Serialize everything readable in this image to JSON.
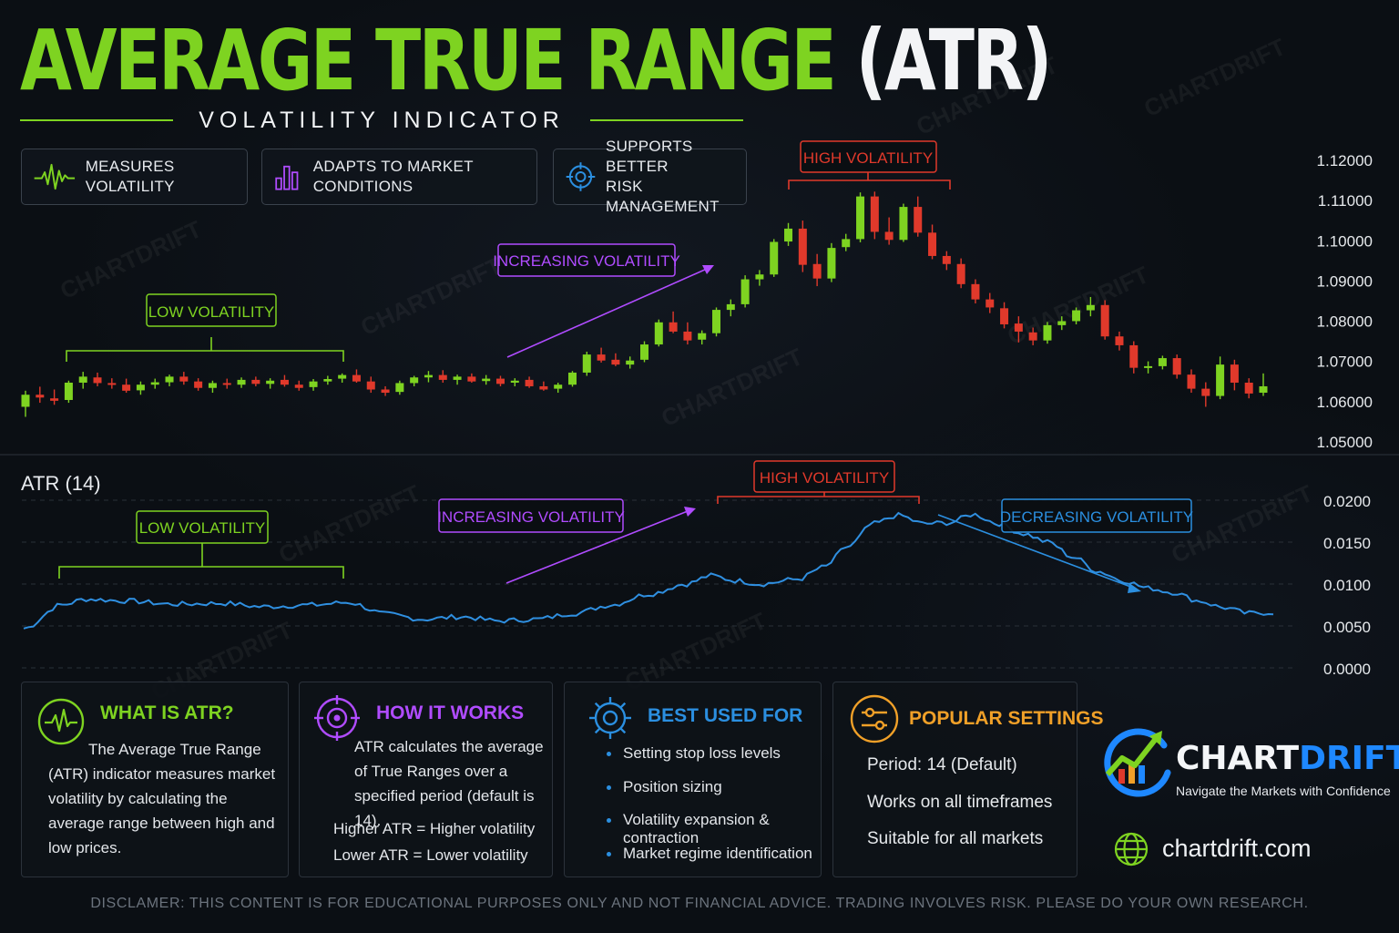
{
  "header": {
    "title_green": "AVERAGE TRUE RANGE",
    "title_white": "(ATR)",
    "subtitle": "VOLATILITY INDICATOR"
  },
  "features": [
    {
      "label": "MEASURES VOLATILITY",
      "icon": "pulse-icon",
      "color": "#7ed321"
    },
    {
      "label": "ADAPTS TO MARKET CONDITIONS",
      "icon": "bars-icon",
      "color": "#b04cff"
    },
    {
      "label": "SUPPORTS BETTER\nRISK MANAGEMENT",
      "icon": "target-icon",
      "color": "#2b8fe0"
    }
  ],
  "colors": {
    "green": "#7ed321",
    "red": "#e0392b",
    "purple": "#b04cff",
    "blue": "#2b8fe0",
    "orange": "#f0a028",
    "atr_line": "#2f8fe0"
  },
  "chart_data": [
    {
      "type": "candlestick",
      "title": "",
      "xlabel": "",
      "ylabel": "",
      "ylim": [
        1.05,
        1.12
      ],
      "yticks": [
        "1.12000",
        "1.11000",
        "1.10000",
        "1.09000",
        "1.08000",
        "1.07000",
        "1.06000",
        "1.05000"
      ],
      "ytick_values": [
        1.12,
        1.11,
        1.1,
        1.09,
        1.08,
        1.07,
        1.06,
        1.05
      ],
      "series": [
        {
          "ohlc": [
            [
              1.0585,
              1.0625,
              1.056,
              1.0615
            ],
            [
              1.0615,
              1.0635,
              1.0595,
              1.0608
            ],
            [
              1.0606,
              1.0628,
              1.059,
              1.06
            ],
            [
              1.0602,
              1.065,
              1.0595,
              1.0645
            ],
            [
              1.0645,
              1.0672,
              1.063,
              1.066
            ],
            [
              1.0658,
              1.067,
              1.0636,
              1.0644
            ],
            [
              1.0644,
              1.0656,
              1.063,
              1.064
            ],
            [
              1.064,
              1.0655,
              1.062,
              1.0625
            ],
            [
              1.0626,
              1.0648,
              1.0615,
              1.064
            ],
            [
              1.064,
              1.0655,
              1.063,
              1.0646
            ],
            [
              1.0646,
              1.0665,
              1.0636,
              1.066
            ],
            [
              1.066,
              1.0672,
              1.064,
              1.0648
            ],
            [
              1.0648,
              1.0656,
              1.0625,
              1.0632
            ],
            [
              1.0632,
              1.065,
              1.062,
              1.0644
            ],
            [
              1.0644,
              1.0655,
              1.063,
              1.064
            ],
            [
              1.064,
              1.0658,
              1.0632,
              1.0652
            ],
            [
              1.0652,
              1.066,
              1.0636,
              1.0642
            ],
            [
              1.0642,
              1.0656,
              1.063,
              1.065
            ],
            [
              1.0652,
              1.0664,
              1.0635,
              1.064
            ],
            [
              1.064,
              1.065,
              1.0625,
              1.0632
            ],
            [
              1.0634,
              1.0654,
              1.0625,
              1.0648
            ],
            [
              1.0648,
              1.0662,
              1.064,
              1.0654
            ],
            [
              1.0655,
              1.0668,
              1.0645,
              1.0664
            ],
            [
              1.0664,
              1.0678,
              1.0645,
              1.0648
            ],
            [
              1.0648,
              1.066,
              1.062,
              1.0628
            ],
            [
              1.0628,
              1.0636,
              1.0612,
              1.062
            ],
            [
              1.0622,
              1.065,
              1.0615,
              1.0644
            ],
            [
              1.0644,
              1.0662,
              1.0636,
              1.0658
            ],
            [
              1.0658,
              1.0674,
              1.0646,
              1.0664
            ],
            [
              1.0664,
              1.0676,
              1.0645,
              1.0652
            ],
            [
              1.0652,
              1.0665,
              1.064,
              1.066
            ],
            [
              1.066,
              1.0668,
              1.0645,
              1.0648
            ],
            [
              1.0649,
              1.0664,
              1.064,
              1.0655
            ],
            [
              1.0655,
              1.0662,
              1.0636,
              1.0642
            ],
            [
              1.0645,
              1.0656,
              1.0636,
              1.065
            ],
            [
              1.0652,
              1.066,
              1.0632,
              1.0636
            ],
            [
              1.0636,
              1.0648,
              1.0625,
              1.0628
            ],
            [
              1.063,
              1.0645,
              1.062,
              1.064
            ],
            [
              1.064,
              1.0674,
              1.0635,
              1.067
            ],
            [
              1.067,
              1.0722,
              1.0662,
              1.0715
            ],
            [
              1.0715,
              1.0732,
              1.0695,
              1.07
            ],
            [
              1.0702,
              1.0718,
              1.0686,
              1.069
            ],
            [
              1.069,
              1.071,
              1.068,
              1.07
            ],
            [
              1.0702,
              1.0748,
              1.0696,
              1.074
            ],
            [
              1.074,
              1.0802,
              1.0735,
              1.0795
            ],
            [
              1.0795,
              1.0822,
              1.0768,
              1.0772
            ],
            [
              1.0772,
              1.0795,
              1.074,
              1.075
            ],
            [
              1.0752,
              1.0775,
              1.074,
              1.0768
            ],
            [
              1.0768,
              1.0832,
              1.076,
              1.0826
            ],
            [
              1.0826,
              1.0852,
              1.081,
              1.084
            ],
            [
              1.084,
              1.0912,
              1.0832,
              1.0902
            ],
            [
              1.0902,
              1.0925,
              1.0886,
              1.0914
            ],
            [
              1.0914,
              1.1002,
              1.0908,
              1.0995
            ],
            [
              1.0996,
              1.1042,
              1.0985,
              1.1028
            ],
            [
              1.1028,
              1.1048,
              1.092,
              1.0938
            ],
            [
              1.094,
              1.0965,
              1.0885,
              1.0904
            ],
            [
              1.0904,
              1.0992,
              1.0895,
              1.098
            ],
            [
              1.0982,
              1.1015,
              1.0972,
              1.1002
            ],
            [
              1.1002,
              1.1118,
              1.0994,
              1.1108
            ],
            [
              1.1108,
              1.112,
              1.1002,
              1.102
            ],
            [
              1.102,
              1.1056,
              1.0988,
              1.1
            ],
            [
              1.1,
              1.109,
              1.0995,
              1.1082
            ],
            [
              1.1082,
              1.1108,
              1.1008,
              1.1018
            ],
            [
              1.1018,
              1.1038,
              1.0952,
              1.096
            ],
            [
              1.096,
              1.0972,
              1.0925,
              1.094
            ],
            [
              1.094,
              1.0954,
              1.088,
              1.089
            ],
            [
              1.089,
              1.0902,
              1.0842,
              1.0852
            ],
            [
              1.0852,
              1.0868,
              1.0818,
              1.0832
            ],
            [
              1.083,
              1.0845,
              1.078,
              1.079
            ],
            [
              1.0792,
              1.081,
              1.0745,
              1.0772
            ],
            [
              1.077,
              1.0782,
              1.0738,
              1.075
            ],
            [
              1.075,
              1.0796,
              1.0742,
              1.0788
            ],
            [
              1.0788,
              1.081,
              1.0776,
              1.0798
            ],
            [
              1.0798,
              1.0832,
              1.079,
              1.0825
            ],
            [
              1.0825,
              1.0858,
              1.081,
              1.0838
            ],
            [
              1.0838,
              1.085,
              1.0752,
              1.076
            ],
            [
              1.076,
              1.0772,
              1.0725,
              1.0738
            ],
            [
              1.0738,
              1.0748,
              1.0668,
              1.0682
            ],
            [
              1.0684,
              1.0698,
              1.0668,
              1.0686
            ],
            [
              1.0686,
              1.0712,
              1.0678,
              1.0706
            ],
            [
              1.0706,
              1.0715,
              1.0655,
              1.0665
            ],
            [
              1.0665,
              1.0678,
              1.062,
              1.063
            ],
            [
              1.063,
              1.0646,
              1.0585,
              1.0612
            ],
            [
              1.0612,
              1.071,
              1.0604,
              1.069
            ],
            [
              1.069,
              1.0702,
              1.0626,
              1.0645
            ],
            [
              1.0645,
              1.0656,
              1.0606,
              1.0618
            ],
            [
              1.062,
              1.0668,
              1.0612,
              1.0636
            ]
          ]
        }
      ],
      "annotations": [
        {
          "label": "LOW VOLATILITY",
          "color": "#7ed321"
        },
        {
          "label": "INCREASING VOLATILITY",
          "color": "#b04cff"
        },
        {
          "label": "HIGH VOLATILITY",
          "color": "#e0392b"
        }
      ]
    },
    {
      "type": "line",
      "title": "ATR (14)",
      "xlabel": "",
      "ylabel": "",
      "ylim": [
        0.0,
        0.02
      ],
      "yticks": [
        "0.0200",
        "0.0150",
        "0.0100",
        "0.0050",
        "0.0000"
      ],
      "ytick_values": [
        0.02,
        0.015,
        0.01,
        0.005,
        0.0
      ],
      "grid": true,
      "series": [
        {
          "name": "",
          "anchors": [
            [
              0.0,
              0.0047
            ],
            [
              0.03,
              0.0075
            ],
            [
              0.05,
              0.0082
            ],
            [
              0.08,
              0.008
            ],
            [
              0.12,
              0.0076
            ],
            [
              0.16,
              0.0077
            ],
            [
              0.19,
              0.0073
            ],
            [
              0.23,
              0.0075
            ],
            [
              0.26,
              0.0078
            ],
            [
              0.29,
              0.0064
            ],
            [
              0.32,
              0.0058
            ],
            [
              0.35,
              0.0061
            ],
            [
              0.38,
              0.0056
            ],
            [
              0.41,
              0.0058
            ],
            [
              0.44,
              0.0065
            ],
            [
              0.47,
              0.0075
            ],
            [
              0.5,
              0.0088
            ],
            [
              0.53,
              0.01
            ],
            [
              0.55,
              0.011
            ],
            [
              0.57,
              0.0104
            ],
            [
              0.59,
              0.01
            ],
            [
              0.62,
              0.0106
            ],
            [
              0.64,
              0.012
            ],
            [
              0.66,
              0.0145
            ],
            [
              0.68,
              0.0172
            ],
            [
              0.7,
              0.0182
            ],
            [
              0.72,
              0.0172
            ],
            [
              0.74,
              0.0173
            ],
            [
              0.76,
              0.0183
            ],
            [
              0.78,
              0.0172
            ],
            [
              0.8,
              0.016
            ],
            [
              0.82,
              0.015
            ],
            [
              0.84,
              0.0132
            ],
            [
              0.86,
              0.0115
            ],
            [
              0.88,
              0.0104
            ],
            [
              0.9,
              0.0095
            ],
            [
              0.92,
              0.009
            ],
            [
              0.94,
              0.008
            ],
            [
              0.96,
              0.0072
            ],
            [
              0.98,
              0.0065
            ],
            [
              1.0,
              0.0066
            ]
          ]
        }
      ],
      "annotations": [
        {
          "label": "LOW VOLATILITY",
          "color": "#7ed321"
        },
        {
          "label": "INCREASING VOLATILITY",
          "color": "#b04cff"
        },
        {
          "label": "HIGH VOLATILITY",
          "color": "#e0392b"
        },
        {
          "label": "DECREASING VOLATILITY",
          "color": "#2b8fe0"
        }
      ]
    }
  ],
  "cards": {
    "what": {
      "title": "WHAT IS ATR?",
      "text": "The Average True Range (ATR) indicator measures market volatility by calculating the average range between high and low prices."
    },
    "how": {
      "title": "HOW IT WORKS",
      "text": "ATR calculates the average of True Ranges over a specified period (default is 14).",
      "line1": "Higher ATR = Higher volatility",
      "line2": "Lower ATR = Lower volatility"
    },
    "best": {
      "title": "BEST USED FOR",
      "items": [
        "Setting stop loss levels",
        "Position sizing",
        "Volatility expansion & contraction",
        "Market regime identification"
      ]
    },
    "settings": {
      "title": "POPULAR SETTINGS",
      "items": [
        "Period: 14 (Default)",
        "Works on all timeframes",
        "Suitable for all markets"
      ]
    }
  },
  "brand": {
    "name_white": "CHART",
    "name_blue": "DRIFT",
    "tagline": "Navigate the Markets with Confidence",
    "website": "chartdrift.com",
    "watermark": "CHARTDRIFT"
  },
  "disclaimer": "DISCLAMER: THIS CONTENT IS FOR EDUCATIONAL PURPOSES ONLY AND NOT FINANCIAL ADVICE. TRADING INVOLVES RISK. PLEASE DO YOUR OWN RESEARCH."
}
